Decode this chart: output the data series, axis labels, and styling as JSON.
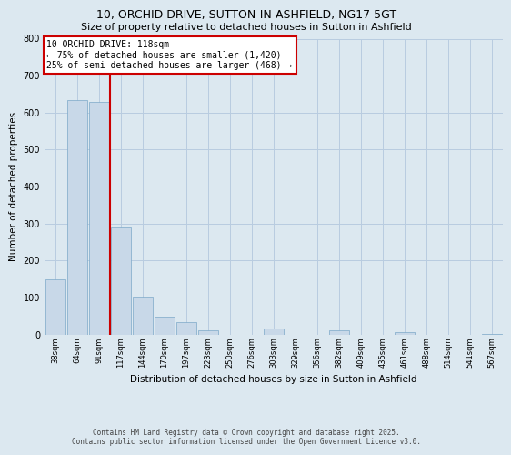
{
  "title_line1": "10, ORCHID DRIVE, SUTTON-IN-ASHFIELD, NG17 5GT",
  "title_line2": "Size of property relative to detached houses in Sutton in Ashfield",
  "xlabel": "Distribution of detached houses by size in Sutton in Ashfield",
  "ylabel": "Number of detached properties",
  "categories": [
    "38sqm",
    "64sqm",
    "91sqm",
    "117sqm",
    "144sqm",
    "170sqm",
    "197sqm",
    "223sqm",
    "250sqm",
    "276sqm",
    "303sqm",
    "329sqm",
    "356sqm",
    "382sqm",
    "409sqm",
    "435sqm",
    "461sqm",
    "488sqm",
    "514sqm",
    "541sqm",
    "567sqm"
  ],
  "values": [
    148,
    635,
    630,
    290,
    102,
    48,
    33,
    12,
    0,
    0,
    15,
    0,
    0,
    10,
    0,
    0,
    5,
    0,
    0,
    0,
    2
  ],
  "bar_color": "#c8d8e8",
  "bar_edge_color": "#7ba8c8",
  "grid_color": "#b8cce0",
  "bg_color": "#dce8f0",
  "fig_bg_color": "#dce8f0",
  "annotation_box_text": "10 ORCHID DRIVE: 118sqm\n← 75% of detached houses are smaller (1,420)\n25% of semi-detached houses are larger (468) →",
  "annotation_box_color": "#cc0000",
  "vline_color": "#cc0000",
  "vline_x": 2.5,
  "ylim": [
    0,
    800
  ],
  "yticks": [
    0,
    100,
    200,
    300,
    400,
    500,
    600,
    700,
    800
  ],
  "footer_line1": "Contains HM Land Registry data © Crown copyright and database right 2025.",
  "footer_line2": "Contains public sector information licensed under the Open Government Licence v3.0."
}
